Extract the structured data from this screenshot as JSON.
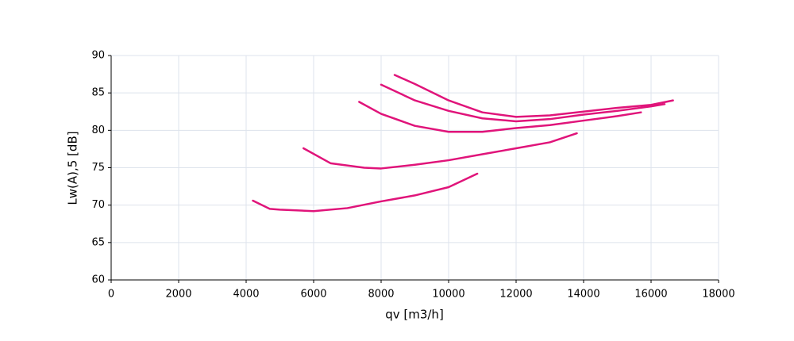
{
  "chart_data": {
    "type": "line",
    "xlabel": "qv [m3/h]",
    "ylabel": "Lw(A),5 [dB]",
    "xlim": [
      0,
      18000
    ],
    "xticks": [
      0,
      2000,
      4000,
      6000,
      8000,
      10000,
      12000,
      14000,
      16000,
      18000
    ],
    "ylim": [
      60,
      90
    ],
    "yticks": [
      60,
      65,
      70,
      75,
      80,
      85,
      90
    ],
    "grid": true,
    "series": [
      {
        "color": "#e0147a",
        "x": [
          4200,
          4700,
          5000,
          6000,
          7000,
          8000,
          9000,
          10000,
          10850
        ],
        "values": [
          70.6,
          69.5,
          69.4,
          69.2,
          69.6,
          70.5,
          71.3,
          72.4,
          74.2
        ]
      },
      {
        "color": "#e0147a",
        "x": [
          5700,
          6500,
          7500,
          8000,
          9000,
          10000,
          11000,
          12000,
          13000,
          13800
        ],
        "values": [
          77.6,
          75.6,
          75.0,
          74.9,
          75.4,
          76.0,
          76.8,
          77.6,
          78.4,
          79.6
        ]
      },
      {
        "color": "#e0147a",
        "x": [
          7350,
          8000,
          9000,
          10000,
          11000,
          12000,
          13000,
          14000,
          15000,
          15700
        ],
        "values": [
          83.8,
          82.2,
          80.6,
          79.8,
          79.8,
          80.3,
          80.7,
          81.3,
          81.9,
          82.4
        ]
      },
      {
        "color": "#e0147a",
        "x": [
          8000,
          9000,
          10000,
          11000,
          12000,
          13000,
          14000,
          15000,
          16000,
          16400
        ],
        "values": [
          86.1,
          84.0,
          82.6,
          81.6,
          81.2,
          81.5,
          82.1,
          82.6,
          83.2,
          83.5
        ]
      },
      {
        "color": "#e0147a",
        "x": [
          8400,
          9000,
          10000,
          11000,
          12000,
          13000,
          14000,
          15000,
          16000,
          16650
        ],
        "values": [
          87.4,
          86.2,
          84.0,
          82.4,
          81.8,
          82.0,
          82.5,
          83.0,
          83.4,
          84.0
        ]
      }
    ]
  }
}
